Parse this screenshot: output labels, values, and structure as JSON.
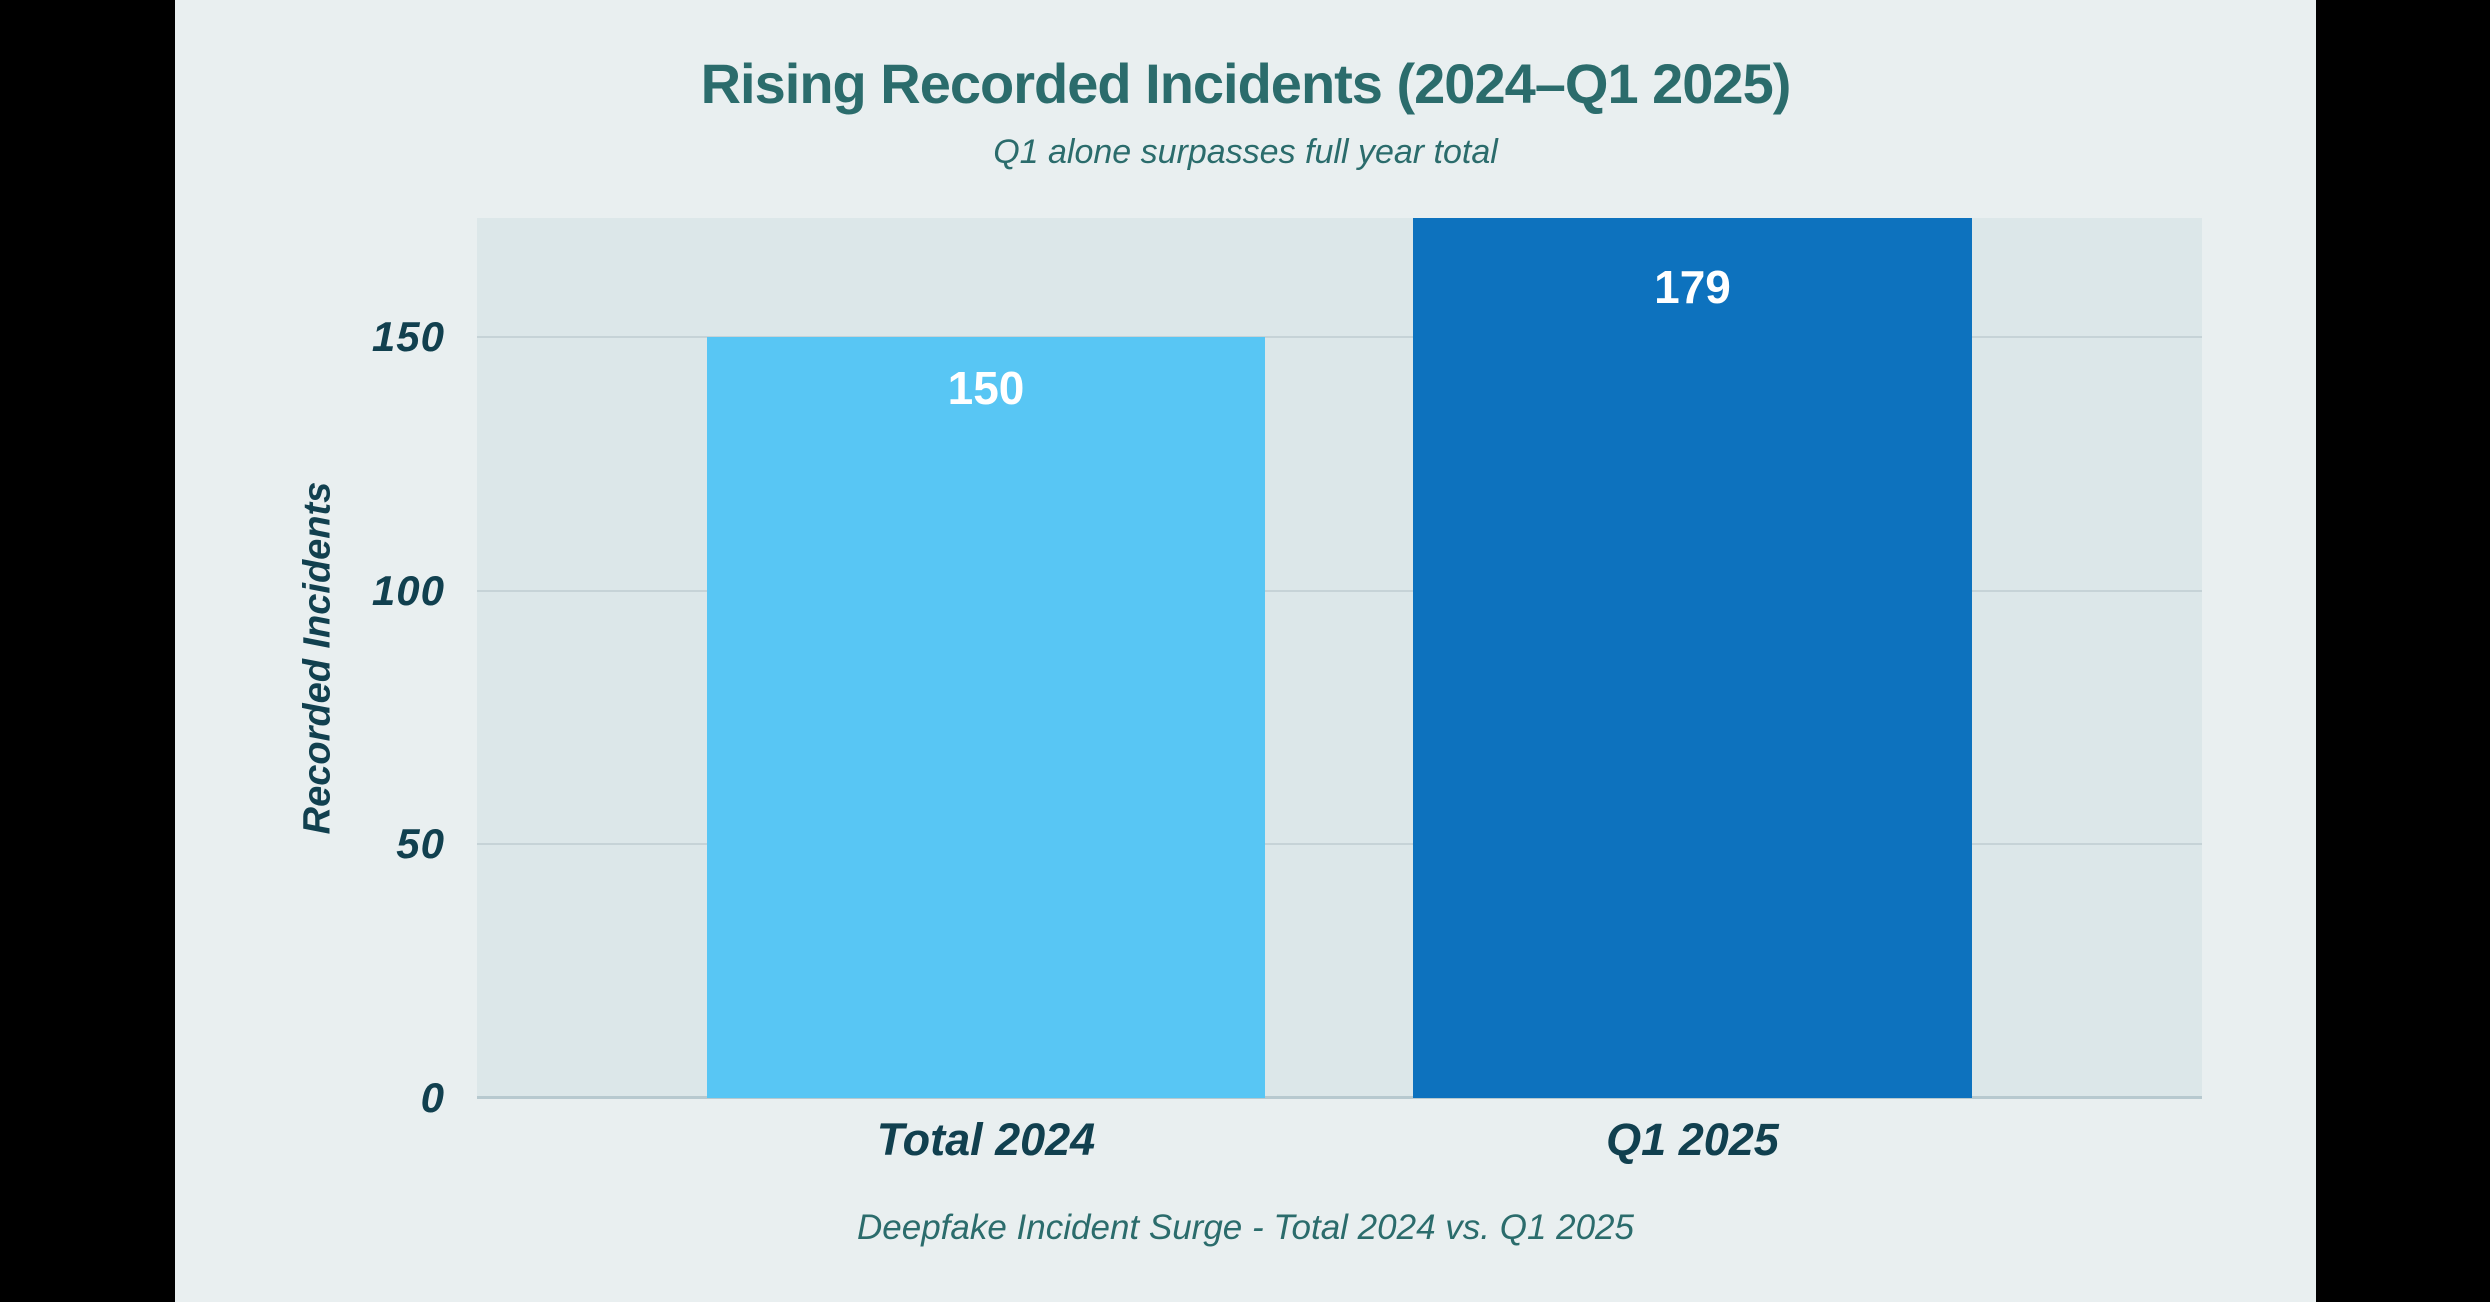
{
  "page": {
    "title": "Rising Recorded Incidents (2024–Q1 2025)",
    "subtitle": "Q1 alone surpasses full year total",
    "caption": "Deepfake Incident Surge - Total 2024 vs. Q1 2025"
  },
  "chart_data": {
    "type": "bar",
    "title": "Rising Recorded Incidents (2024–Q1 2025)",
    "subtitle": "Q1 alone surpasses full year total",
    "caption": "Deepfake Incident Surge - Total 2024 vs. Q1 2025",
    "xlabel": "",
    "ylabel": "Recorded Incidents",
    "categories": [
      "Total 2024",
      "Q1 2025"
    ],
    "values": [
      150,
      179
    ],
    "data_labels": [
      "150",
      "179"
    ],
    "bar_colors": [
      "#58C6F4",
      "#0D72BE"
    ],
    "yticks": [
      0,
      50,
      100,
      150
    ],
    "ylim": [
      0,
      173.5
    ],
    "grid": true,
    "legend": false,
    "notes": "Second bar (179) overflows the y-axis range and is clipped at the top of the plot area"
  },
  "colors": {
    "background_outer": "#000000",
    "background_content": "#E9EFF0",
    "plot_background": "#DCE7E9",
    "gridline": "#C6D3D7",
    "baseline": "#B7C9CF",
    "title_text": "#2B6C6C",
    "axis_text": "#11404F",
    "bar_label_text": "#FFFFFF"
  }
}
